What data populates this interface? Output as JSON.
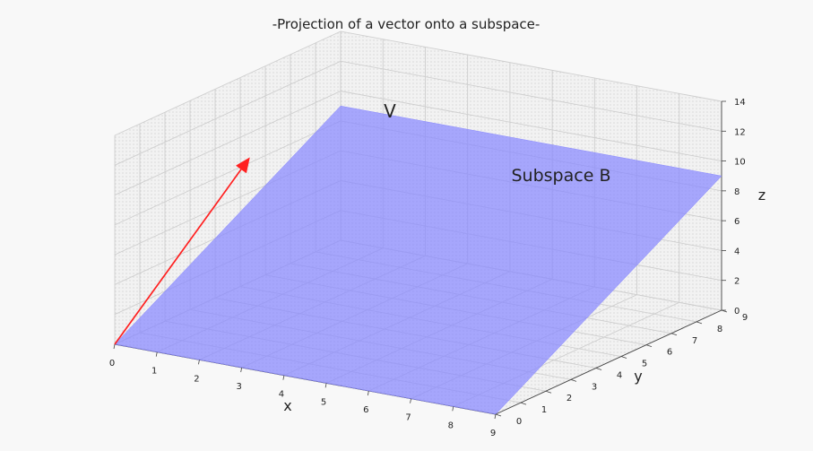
{
  "chart_data": {
    "type": "3d-surface",
    "title": "-Projection of a vector onto a subspace-",
    "xlabel": "x",
    "ylabel": "y",
    "zlabel": "z",
    "xlim": [
      0,
      9
    ],
    "ylim": [
      0,
      9
    ],
    "zlim": [
      0,
      14
    ],
    "xticks": [
      "0",
      "1",
      "2",
      "3",
      "4",
      "5",
      "6",
      "7",
      "8",
      "9"
    ],
    "yticks": [
      "0",
      "1",
      "2",
      "3",
      "4",
      "5",
      "6",
      "7",
      "8",
      "9"
    ],
    "zticks": [
      "0",
      "2",
      "4",
      "6",
      "8",
      "10",
      "12",
      "14"
    ],
    "grid": true,
    "plane": {
      "label": "Subspace B",
      "color": "#8888ff",
      "corners": [
        [
          0,
          0,
          0
        ],
        [
          9,
          0,
          0
        ],
        [
          9,
          9,
          9
        ],
        [
          0,
          9,
          9
        ]
      ]
    },
    "vector": {
      "label": "V",
      "color": "#ff2020",
      "tail": [
        0,
        0,
        0
      ],
      "head": [
        2,
        2,
        12
      ]
    }
  }
}
